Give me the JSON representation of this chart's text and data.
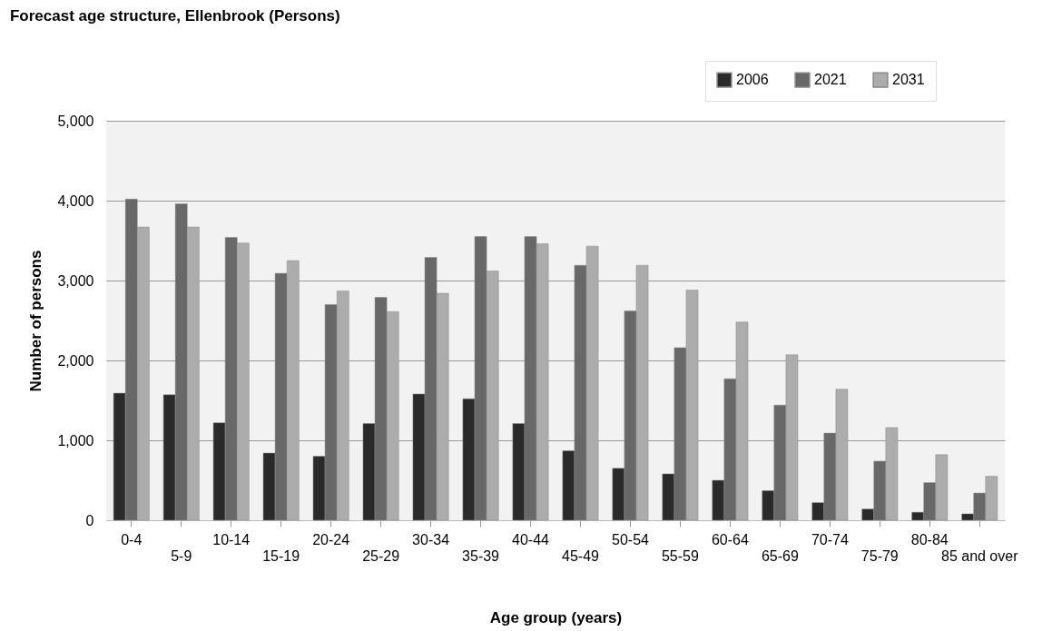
{
  "chart_data": {
    "type": "bar",
    "title": "Forecast age structure, Ellenbrook (Persons)",
    "xlabel": "Age group (years)",
    "ylabel": "Number of persons",
    "categories": [
      "0-4",
      "5-9",
      "10-14",
      "15-19",
      "20-24",
      "25-29",
      "30-34",
      "35-39",
      "40-44",
      "45-49",
      "50-54",
      "55-59",
      "60-64",
      "65-69",
      "70-74",
      "75-79",
      "80-84",
      "85 and over"
    ],
    "series": [
      {
        "name": "2006",
        "color": "#2a2a2a",
        "values": [
          1590,
          1570,
          1220,
          840,
          800,
          1210,
          1580,
          1520,
          1210,
          870,
          650,
          580,
          500,
          370,
          220,
          140,
          100,
          80
        ]
      },
      {
        "name": "2021",
        "color": "#686868",
        "values": [
          4020,
          3960,
          3540,
          3090,
          2700,
          2790,
          3290,
          3550,
          3550,
          3190,
          2620,
          2160,
          1770,
          1440,
          1090,
          740,
          470,
          340
        ]
      },
      {
        "name": "2031",
        "color": "#acacac",
        "values": [
          3670,
          3670,
          3470,
          3250,
          2870,
          2610,
          2840,
          3120,
          3460,
          3430,
          3190,
          2880,
          2480,
          2070,
          1640,
          1160,
          820,
          550
        ]
      }
    ],
    "ylim": [
      0,
      5000
    ],
    "yticks": [
      {
        "value": 0,
        "label": "0"
      },
      {
        "value": 1000,
        "label": "1,000"
      },
      {
        "value": 2000,
        "label": "2,000"
      },
      {
        "value": 3000,
        "label": "3,000"
      },
      {
        "value": 4000,
        "label": "4,000"
      },
      {
        "value": 5000,
        "label": "5,000"
      }
    ],
    "grid": "y",
    "legend": "top right"
  }
}
